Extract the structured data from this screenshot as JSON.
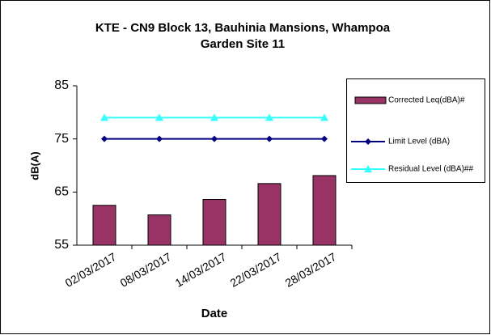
{
  "chart_data": {
    "type": "bar",
    "title": [
      "KTE - CN9 Block 13, Bauhinia Mansions, Whampoa",
      "Garden Site 11"
    ],
    "x_label": "Date",
    "y_label": "dB(A)",
    "categories": [
      "02/03/2017",
      "08/03/2017",
      "14/03/2017",
      "22/03/2017",
      "28/03/2017"
    ],
    "series": [
      {
        "name": "Corrected Leq(dBA)#",
        "type": "bar",
        "color": "#993366",
        "values": [
          62.5,
          60.7,
          63.6,
          66.6,
          68.1
        ]
      },
      {
        "name": "Limit Level (dBA)",
        "type": "line",
        "marker": "diamond",
        "color": "#000080",
        "values": [
          75,
          75,
          75,
          75,
          75
        ]
      },
      {
        "name": "Residual Level (dBA)##",
        "type": "line",
        "marker": "triangle",
        "color": "#33ffff",
        "values": [
          79,
          79,
          79,
          79,
          79
        ]
      }
    ],
    "ylim": [
      55,
      85
    ],
    "yticks": [
      55,
      65,
      75,
      85
    ],
    "grid": false,
    "legend": "right"
  }
}
